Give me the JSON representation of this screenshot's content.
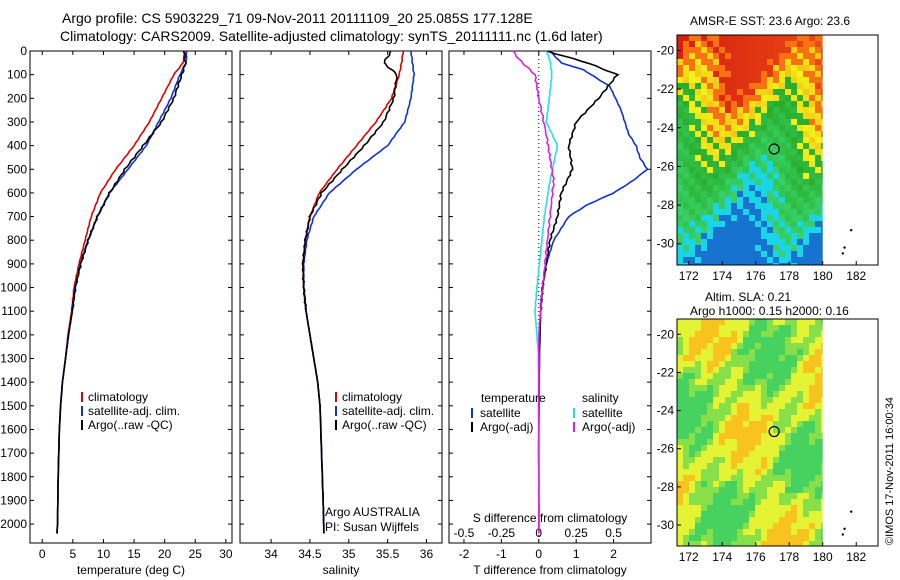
{
  "header": {
    "line1": "Argo profile: CS 5903229_71 09-Nov-2011 20111109_20 25.085S 177.128E",
    "line2": "Climatology: CARS2009. Satellite-adjusted climatology: synTS_20111111.nc (1.6d later)"
  },
  "colors": {
    "climatology": "#e00000",
    "satellite": "#1030e0",
    "argo": "#000000",
    "sat_salinity": "#20e0e8",
    "argo_salinity_diff": "#e020e0"
  },
  "chart_data": [
    {
      "type": "line",
      "panel": "temperature",
      "xlabel": "temperature (deg C)",
      "ylabel": "",
      "xlim": [
        -2,
        31
      ],
      "ylim": [
        2080,
        0
      ],
      "xticks": [
        0,
        5,
        10,
        15,
        20,
        25,
        30
      ],
      "yticks": [
        0,
        100,
        200,
        300,
        400,
        500,
        600,
        700,
        800,
        900,
        1000,
        1100,
        1200,
        1300,
        1400,
        1500,
        1600,
        1700,
        1800,
        1900,
        2000
      ],
      "legend": [
        "climatology",
        "satellite-adj. clim.",
        "Argo(..raw -QC)"
      ],
      "series": [
        {
          "name": "climatology",
          "color": "#e00000",
          "x": [
            23.3,
            23.0,
            21.5,
            19.5,
            17.5,
            15.0,
            12.0,
            9.5,
            8.0,
            7.0,
            6.0,
            5.2,
            4.8,
            4.2,
            3.8,
            3.3,
            3.0,
            2.8,
            2.6,
            2.5,
            2.4
          ],
          "y": [
            0,
            50,
            100,
            200,
            300,
            400,
            500,
            600,
            700,
            800,
            900,
            1000,
            1100,
            1200,
            1300,
            1400,
            1500,
            1600,
            1800,
            2000,
            2040
          ]
        },
        {
          "name": "satellite-adj. clim.",
          "color": "#1030e0",
          "x": [
            23.6,
            23.5,
            22.5,
            21.0,
            19.0,
            17.0,
            14.0,
            11.0,
            9.0,
            7.5,
            6.2,
            5.4,
            4.9,
            4.3,
            3.8,
            3.3,
            3.0,
            2.8,
            2.6,
            2.5,
            2.4
          ],
          "y": [
            0,
            50,
            100,
            200,
            300,
            400,
            500,
            600,
            700,
            800,
            900,
            1000,
            1100,
            1200,
            1300,
            1400,
            1500,
            1600,
            1800,
            2000,
            2040
          ]
        },
        {
          "name": "Argo(..raw -QC)",
          "color": "#000000",
          "x": [
            23.2,
            23.4,
            22.8,
            21.5,
            19.5,
            16.5,
            13.5,
            11.0,
            9.0,
            7.5,
            6.3,
            5.4,
            4.9,
            4.3,
            3.8,
            3.3,
            3.0,
            2.8,
            2.6,
            2.5,
            2.4
          ],
          "y": [
            0,
            50,
            100,
            200,
            300,
            400,
            500,
            600,
            700,
            800,
            900,
            1000,
            1100,
            1200,
            1300,
            1400,
            1500,
            1600,
            1800,
            2000,
            2040
          ]
        }
      ]
    },
    {
      "type": "line",
      "panel": "salinity",
      "xlabel": "salinity",
      "xlim": [
        33.6,
        36.2
      ],
      "ylim": [
        2080,
        0
      ],
      "xticks": [
        34,
        34.5,
        35,
        35.5,
        36
      ],
      "legend": [
        "climatology",
        "satellite-adj. clim.",
        "Argo(..raw -QC)"
      ],
      "annotation": [
        "Argo AUSTRALIA",
        "PI: Susan Wijffels"
      ],
      "series": [
        {
          "name": "climatology",
          "color": "#e00000",
          "x": [
            35.7,
            35.68,
            35.65,
            35.55,
            35.35,
            35.1,
            34.85,
            34.62,
            34.5,
            34.44,
            34.41,
            34.42,
            34.45,
            34.5,
            34.55,
            34.6,
            34.63,
            34.65,
            34.67,
            34.68
          ],
          "y": [
            0,
            50,
            100,
            200,
            300,
            400,
            500,
            600,
            700,
            800,
            900,
            1000,
            1100,
            1200,
            1300,
            1400,
            1500,
            1700,
            1900,
            2040
          ]
        },
        {
          "name": "satellite-adj. clim.",
          "color": "#1030e0",
          "x": [
            35.8,
            35.82,
            35.84,
            35.8,
            35.72,
            35.5,
            35.1,
            34.75,
            34.55,
            34.46,
            34.42,
            34.42,
            34.45,
            34.5,
            34.55,
            34.6,
            34.63,
            34.65,
            34.67,
            34.68
          ],
          "y": [
            0,
            50,
            100,
            200,
            300,
            400,
            500,
            600,
            700,
            800,
            900,
            1000,
            1100,
            1200,
            1300,
            1400,
            1500,
            1700,
            1900,
            2040
          ]
        },
        {
          "name": "Argo(..raw -QC)",
          "color": "#000000",
          "x": [
            35.55,
            35.45,
            35.62,
            35.58,
            35.45,
            35.2,
            34.92,
            34.65,
            34.5,
            34.44,
            34.41,
            34.42,
            34.45,
            34.5,
            34.55,
            34.6,
            34.63,
            34.65,
            34.67,
            34.68
          ],
          "y": [
            0,
            50,
            100,
            200,
            300,
            400,
            500,
            600,
            700,
            800,
            900,
            1000,
            1100,
            1200,
            1300,
            1400,
            1500,
            1700,
            1900,
            2040
          ]
        }
      ]
    },
    {
      "type": "line",
      "panel": "difference",
      "xlabel": "T difference from climatology",
      "xlabel_top": "S difference from climatology",
      "xlim": [
        -2.4,
        3.0
      ],
      "ylim": [
        2080,
        0
      ],
      "xticks": [
        -2,
        -1,
        0,
        1,
        2
      ],
      "xticks_salinity": [
        "-0.5",
        "-0.25",
        "0",
        "0.25",
        "0.5"
      ],
      "legend_temperature": {
        "title": "temperature",
        "entries": [
          "satellite",
          "Argo(-adj)"
        ]
      },
      "legend_salinity": {
        "title": "salinity",
        "entries": [
          "satellite",
          "Argo(-adj)"
        ]
      },
      "series": [
        {
          "name": "temperature satellite",
          "color": "#1030e0",
          "x": [
            0.3,
            0.6,
            1.2,
            1.9,
            2.2,
            2.4,
            2.6,
            2.7,
            2.9,
            2.5,
            2.0,
            1.3,
            0.8,
            0.4,
            0.2,
            0.1,
            0.05,
            0.02,
            0.0,
            0.0
          ],
          "y": [
            0,
            50,
            80,
            150,
            250,
            350,
            400,
            450,
            500,
            550,
            600,
            650,
            700,
            800,
            900,
            1000,
            1100,
            1300,
            1600,
            2040
          ]
        },
        {
          "name": "temperature Argo(-adj)",
          "color": "#000000",
          "x": [
            0.2,
            1.3,
            2.1,
            1.6,
            1.0,
            0.8,
            0.9,
            0.6,
            0.5,
            0.3,
            0.2,
            0.1,
            0.05,
            0.0,
            0.0
          ],
          "y": [
            0,
            50,
            100,
            200,
            300,
            400,
            500,
            600,
            700,
            800,
            900,
            1000,
            1100,
            1300,
            2040
          ]
        },
        {
          "name": "salinity satellite",
          "color": "#20e0e8",
          "x": [
            0.2,
            0.3,
            0.35,
            0.28,
            0.2,
            0.5,
            0.3,
            0.15,
            0.05,
            -0.05,
            -0.1,
            0.0,
            0.0,
            0.0
          ],
          "y": [
            0,
            40,
            100,
            200,
            300,
            400,
            550,
            700,
            850,
            1000,
            1100,
            1300,
            1600,
            2040
          ]
        },
        {
          "name": "salinity Argo(-adj)",
          "color": "#e020e0",
          "x": [
            -0.7,
            -0.5,
            -0.1,
            0.0,
            0.2,
            0.3,
            0.4,
            0.3,
            0.2,
            0.1,
            0.0,
            0.0
          ],
          "y": [
            0,
            40,
            100,
            200,
            350,
            450,
            550,
            700,
            850,
            1000,
            1200,
            2040
          ]
        }
      ]
    }
  ],
  "maps": [
    {
      "title": "AMSR-E SST: 23.6 Argo: 23.6",
      "xticks": [
        172,
        174,
        176,
        178,
        180,
        182
      ],
      "yticks": [
        -20,
        -22,
        -24,
        -26,
        -28,
        -30
      ],
      "argo_position": [
        177.1,
        -25.1
      ]
    },
    {
      "title_line1": "Altim. SLA: 0.21",
      "title_line2": "Argo h1000: 0.15 h2000: 0.16",
      "xticks": [
        172,
        174,
        176,
        178,
        180,
        182
      ],
      "yticks": [
        -20,
        -22,
        -24,
        -26,
        -28,
        -30
      ],
      "argo_position": [
        177.1,
        -25.1
      ]
    }
  ],
  "credit": "©IMOS 17-Nov-2011 16:00:34"
}
